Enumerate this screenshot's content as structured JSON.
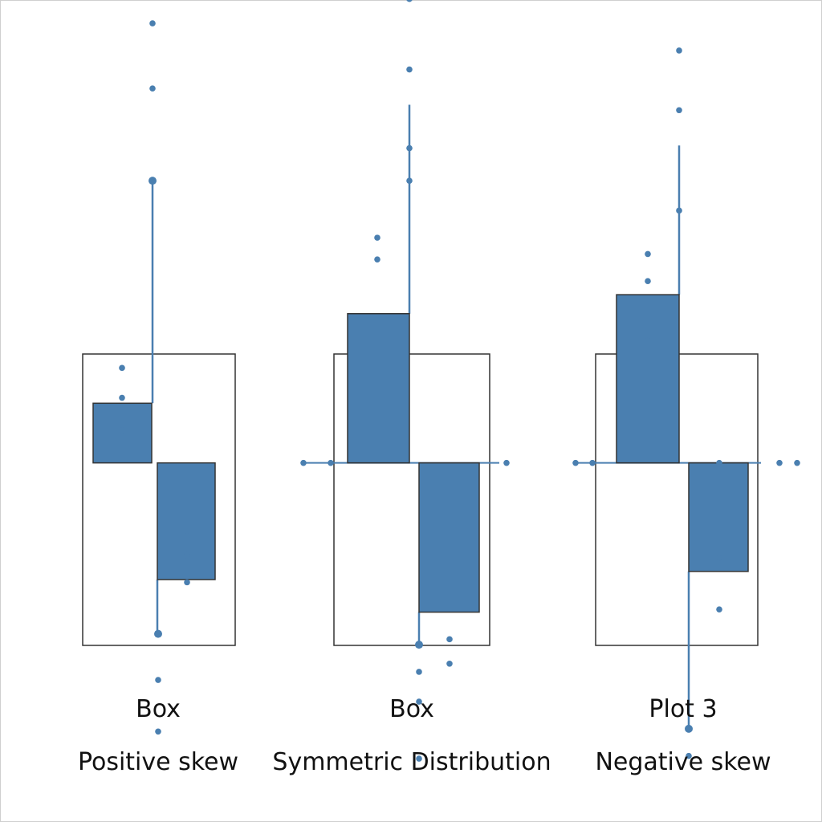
{
  "colors": {
    "accent": "#4a7fb0",
    "box_outline": "#333333",
    "text": "#111111"
  },
  "chart_data": [
    {
      "type": "box",
      "title": "Box",
      "subtitle": "Positive skew",
      "upper_block": [
        0.43,
        0.65
      ],
      "lower_block": [
        0.0,
        0.43
      ],
      "whisker_top": 1.47,
      "whisker_bottom": -0.2,
      "points": [
        [
          0.5,
          2.05
        ],
        [
          0.5,
          1.81
        ],
        [
          0.5,
          1.47
        ],
        [
          0.3,
          0.78
        ],
        [
          0.3,
          0.67
        ],
        [
          0.3,
          0.55
        ],
        [
          0.8,
          0.16
        ],
        [
          0.8,
          0.09
        ],
        [
          0.8,
          -0.01
        ],
        [
          0.65,
          -0.2
        ],
        [
          0.65,
          -0.37
        ],
        [
          0.65,
          -0.56
        ]
      ]
    },
    {
      "type": "box",
      "title": "Box",
      "subtitle": "Symmetric Distribution",
      "upper_block": [
        0.43,
        0.98
      ],
      "lower_block": [
        -0.12,
        0.43
      ],
      "whisker_top": 1.75,
      "whisker_bottom": -0.24,
      "points": [
        [
          0.7,
          2.14
        ],
        [
          0.7,
          1.88
        ],
        [
          0.7,
          1.59
        ],
        [
          0.7,
          1.47
        ],
        [
          0.3,
          1.26
        ],
        [
          0.3,
          1.18
        ],
        [
          -0.2,
          0.43
        ],
        [
          0.1,
          0.43
        ],
        [
          1.15,
          0.43
        ],
        [
          0.55,
          -0.24
        ],
        [
          0.55,
          -0.34
        ],
        [
          0.55,
          -0.45
        ],
        [
          0.55,
          -0.66
        ],
        [
          0.75,
          -0.22
        ],
        [
          0.75,
          -0.31
        ]
      ]
    },
    {
      "type": "box",
      "title": "Plot 3",
      "subtitle": "Negative skew",
      "upper_block": [
        0.43,
        1.05
      ],
      "lower_block": [
        0.03,
        0.43
      ],
      "whisker_top": 1.6,
      "whisker_bottom": -0.55,
      "points": [
        [
          0.5,
          2.23
        ],
        [
          0.5,
          1.95
        ],
        [
          0.5,
          1.73
        ],
        [
          0.5,
          1.36
        ],
        [
          0.3,
          1.2
        ],
        [
          0.3,
          1.1
        ],
        [
          0.3,
          0.88
        ],
        [
          -0.1,
          0.43
        ],
        [
          0.0,
          0.43
        ],
        [
          0.75,
          0.43
        ],
        [
          1.15,
          0.43
        ],
        [
          1.25,
          0.43
        ],
        [
          0.75,
          0.08
        ],
        [
          0.75,
          -0.11
        ],
        [
          0.6,
          -0.55
        ],
        [
          0.6,
          -0.65
        ]
      ]
    }
  ]
}
